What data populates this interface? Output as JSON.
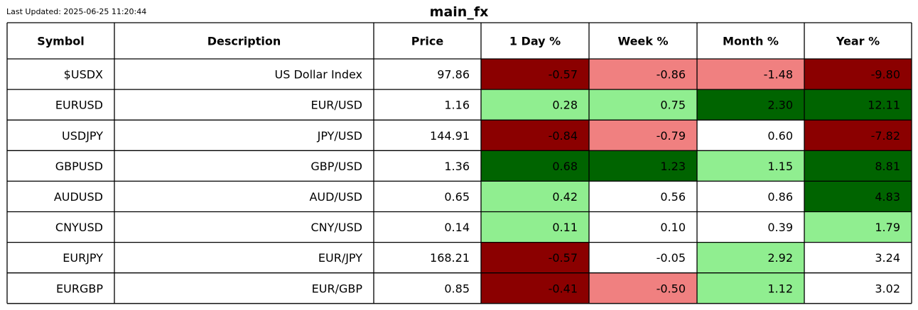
{
  "last_updated": "Last Updated: 2025-06-25 11:20:44",
  "title": "main_fx",
  "colors": {
    "strong_neg": "#8b0000",
    "weak_neg": "#f08080",
    "neutral": "#ffffff",
    "weak_pos": "#90ee90",
    "strong_pos": "#006400",
    "border": "#000000"
  },
  "chart_data": {
    "type": "table",
    "title": "main_fx",
    "columns": [
      "Symbol",
      "Description",
      "Price",
      "1 Day %",
      "Week %",
      "Month %",
      "Year %"
    ],
    "rows": [
      {
        "symbol": "$USDX",
        "description": "US Dollar Index",
        "price": "97.86",
        "day": "-0.57",
        "week": "-0.86",
        "month": "-1.48",
        "year": "-9.80",
        "colors": [
          "strong_neg",
          "weak_neg",
          "weak_neg",
          "strong_neg"
        ]
      },
      {
        "symbol": "EURUSD",
        "description": "EUR/USD",
        "price": "1.16",
        "day": "0.28",
        "week": "0.75",
        "month": "2.30",
        "year": "12.11",
        "colors": [
          "weak_pos",
          "weak_pos",
          "strong_pos",
          "strong_pos"
        ]
      },
      {
        "symbol": "USDJPY",
        "description": "JPY/USD",
        "price": "144.91",
        "day": "-0.84",
        "week": "-0.79",
        "month": "0.60",
        "year": "-7.82",
        "colors": [
          "strong_neg",
          "weak_neg",
          "neutral",
          "strong_neg"
        ]
      },
      {
        "symbol": "GBPUSD",
        "description": "GBP/USD",
        "price": "1.36",
        "day": "0.68",
        "week": "1.23",
        "month": "1.15",
        "year": "8.81",
        "colors": [
          "strong_pos",
          "strong_pos",
          "weak_pos",
          "strong_pos"
        ]
      },
      {
        "symbol": "AUDUSD",
        "description": "AUD/USD",
        "price": "0.65",
        "day": "0.42",
        "week": "0.56",
        "month": "0.86",
        "year": "4.83",
        "colors": [
          "weak_pos",
          "neutral",
          "neutral",
          "strong_pos"
        ]
      },
      {
        "symbol": "CNYUSD",
        "description": "CNY/USD",
        "price": "0.14",
        "day": "0.11",
        "week": "0.10",
        "month": "0.39",
        "year": "1.79",
        "colors": [
          "weak_pos",
          "neutral",
          "neutral",
          "weak_pos"
        ]
      },
      {
        "symbol": "EURJPY",
        "description": "EUR/JPY",
        "price": "168.21",
        "day": "-0.57",
        "week": "-0.05",
        "month": "2.92",
        "year": "3.24",
        "colors": [
          "strong_neg",
          "neutral",
          "weak_pos",
          "neutral"
        ]
      },
      {
        "symbol": "EURGBP",
        "description": "EUR/GBP",
        "price": "0.85",
        "day": "-0.41",
        "week": "-0.50",
        "month": "1.12",
        "year": "3.02",
        "colors": [
          "strong_neg",
          "weak_neg",
          "weak_pos",
          "neutral"
        ]
      }
    ]
  }
}
